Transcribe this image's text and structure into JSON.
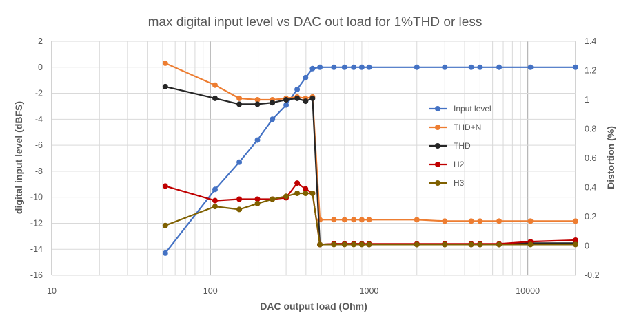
{
  "chart_data": {
    "type": "line",
    "title": "max digital input level vs DAC out load for 1%THD or less",
    "xlabel": "DAC output load (Ohm)",
    "ylabel": "digital input level (dBFS)",
    "y2label": "Distortion (%)",
    "xscale": "log",
    "xlim": [
      10,
      20000
    ],
    "ylim": [
      -16,
      2
    ],
    "y2lim": [
      -0.2,
      1.4
    ],
    "xticks": [
      10,
      100,
      1000,
      10000
    ],
    "xtick_labels": [
      "10",
      "100",
      "1000",
      "10000"
    ],
    "yticks": [
      2,
      0,
      -2,
      -4,
      -6,
      -8,
      -10,
      -12,
      -14,
      -16
    ],
    "ytick_labels": [
      "2",
      "0",
      "-2",
      "-4",
      "-6",
      "-8",
      "-10",
      "-12",
      "-14",
      "-16"
    ],
    "y2ticks": [
      1.4,
      1.2,
      1,
      0.8,
      0.6,
      0.4,
      0.2,
      0,
      -0.2
    ],
    "y2tick_labels": [
      "1.4",
      "1.2",
      "1",
      "0.8",
      "0.6",
      "0.4",
      "0.2",
      "0",
      "-0.2"
    ],
    "grid": "major and minor (log x)",
    "legend_position": "right, inside plot",
    "series": [
      {
        "name": "Input level",
        "axis": "left",
        "color": "#4472C4",
        "x": [
          52,
          107,
          152,
          198,
          246,
          300,
          352,
          398,
          440,
          490,
          600,
          700,
          800,
          900,
          1000,
          2000,
          3000,
          4400,
          5000,
          6600,
          10400,
          20000
        ],
        "y": [
          -14.3,
          -9.4,
          -7.3,
          -5.6,
          -4.0,
          -2.9,
          -1.7,
          -0.8,
          -0.1,
          0,
          0,
          0,
          0,
          0,
          0,
          0,
          0,
          0,
          0,
          0,
          0,
          0
        ]
      },
      {
        "name": "THD+N",
        "axis": "right",
        "color": "#ED7D31",
        "x": [
          52,
          107,
          152,
          198,
          246,
          300,
          352,
          398,
          440,
          490,
          600,
          700,
          800,
          900,
          1000,
          2000,
          3000,
          4400,
          5000,
          6600,
          10400,
          20000
        ],
        "y": [
          1.25,
          1.1,
          1.01,
          1.0,
          1.0,
          1.01,
          1.02,
          1.01,
          1.02,
          0.18,
          0.18,
          0.18,
          0.18,
          0.18,
          0.18,
          0.18,
          0.17,
          0.17,
          0.17,
          0.17,
          0.17,
          0.17
        ]
      },
      {
        "name": "THD",
        "axis": "right",
        "color": "#262626",
        "x": [
          52,
          107,
          152,
          198,
          246,
          300,
          352,
          398,
          440,
          490,
          600,
          700,
          800,
          900,
          1000,
          2000,
          3000,
          4400,
          5000,
          6600,
          10400,
          20000
        ],
        "y": [
          1.09,
          1.01,
          0.97,
          0.97,
          0.98,
          1.0,
          1.01,
          0.99,
          1.01,
          0.01,
          0.015,
          0.015,
          0.015,
          0.015,
          0.01,
          0.01,
          0.01,
          0.01,
          0.01,
          0.01,
          0.02,
          0.02
        ]
      },
      {
        "name": "H2",
        "axis": "right",
        "color": "#C00000",
        "x": [
          52,
          107,
          152,
          198,
          246,
          300,
          352,
          398,
          440,
          490,
          600,
          700,
          800,
          900,
          1000,
          2000,
          3000,
          4400,
          5000,
          6600,
          10400,
          20000
        ],
        "y": [
          0.41,
          0.31,
          0.32,
          0.32,
          0.32,
          0.33,
          0.43,
          0.39,
          0.36,
          0.01,
          0.015,
          0.015,
          0.015,
          0.015,
          0.015,
          0.015,
          0.015,
          0.015,
          0.015,
          0.015,
          0.03,
          0.04
        ]
      },
      {
        "name": "H3",
        "axis": "right",
        "color": "#7F6000",
        "x": [
          52,
          107,
          152,
          198,
          246,
          300,
          352,
          398,
          440,
          490,
          600,
          700,
          800,
          900,
          1000,
          2000,
          3000,
          4400,
          5000,
          6600,
          10400,
          20000
        ],
        "y": [
          0.14,
          0.27,
          0.25,
          0.29,
          0.32,
          0.34,
          0.36,
          0.36,
          0.36,
          0.01,
          0.01,
          0.01,
          0.01,
          0.01,
          0.01,
          0.01,
          0.01,
          0.01,
          0.01,
          0.01,
          0.01,
          0.01
        ]
      }
    ]
  }
}
